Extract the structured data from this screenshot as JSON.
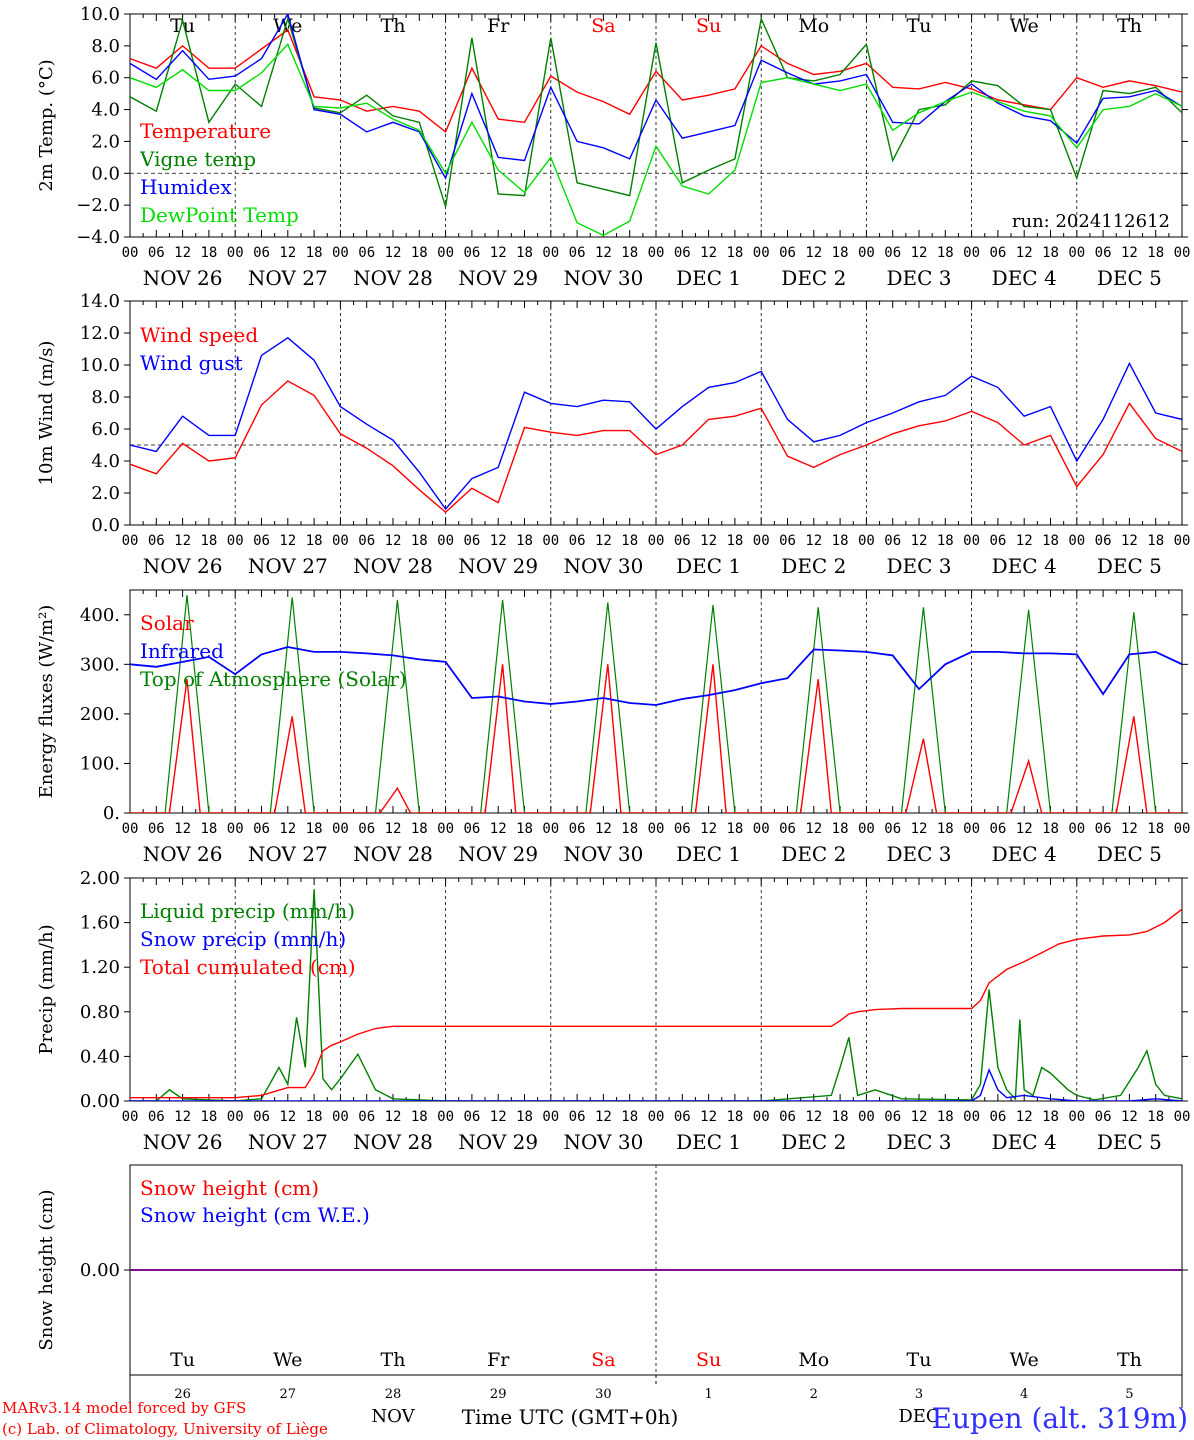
{
  "chart_data": [
    {
      "type": "line",
      "panel": "temperature",
      "ylabel": "2m Temp. (°C)",
      "ylim": [
        -4.0,
        10.0
      ],
      "yticks": [
        "10.0",
        "8.0",
        "6.0",
        "4.0",
        "2.0",
        "0.0",
        "−2.0",
        "−4.0"
      ],
      "yticks_values": [
        10,
        8,
        6,
        4,
        2,
        0,
        -2,
        -4
      ],
      "hline": 0.0,
      "weekday_labels": [
        "Tu",
        "We",
        "Th",
        "Fr",
        "Sa",
        "Su",
        "Mo",
        "Tu",
        "We",
        "Th"
      ],
      "weekday_colors": [
        "#000000",
        "#000000",
        "#000000",
        "#000000",
        "#ff0000",
        "#ff0000",
        "#000000",
        "#000000",
        "#000000",
        "#000000"
      ],
      "annotation": "run: 2024112612",
      "legend": [
        "Temperature",
        "Vigne temp",
        "Humidex",
        "DewPoint Temp"
      ],
      "legend_placement": "left",
      "series": [
        {
          "name": "Temperature",
          "color": "#ff0000",
          "x": [
            0,
            6,
            12,
            18,
            24,
            30,
            36,
            42,
            48,
            54,
            60,
            66,
            72,
            78,
            84,
            90,
            96,
            102,
            108,
            114,
            120,
            126,
            132,
            138,
            144,
            150,
            156,
            162,
            168,
            174,
            180,
            186,
            192,
            198,
            204,
            210,
            216,
            222,
            228,
            234,
            240
          ],
          "values": [
            7.2,
            6.6,
            8.0,
            6.6,
            6.6,
            7.8,
            9.0,
            4.8,
            4.6,
            3.9,
            4.2,
            3.9,
            2.6,
            6.6,
            3.4,
            3.2,
            6.1,
            5.1,
            4.5,
            3.7,
            6.4,
            4.6,
            4.9,
            5.3,
            8.0,
            6.9,
            6.2,
            6.4,
            6.9,
            5.4,
            5.3,
            5.7,
            5.3,
            4.6,
            4.3,
            4.0,
            6.0,
            5.4,
            5.8,
            5.5,
            5.1
          ]
        },
        {
          "name": "Vigne temp",
          "color": "#008000",
          "x": [
            0,
            6,
            12,
            18,
            24,
            30,
            36,
            42,
            48,
            54,
            60,
            66,
            72,
            78,
            84,
            90,
            96,
            102,
            108,
            114,
            120,
            126,
            132,
            138,
            144,
            150,
            156,
            162,
            168,
            174,
            180,
            186,
            192,
            198,
            204,
            210,
            216,
            222,
            228,
            234,
            240
          ],
          "values": [
            4.8,
            3.9,
            9.6,
            3.2,
            5.6,
            4.2,
            9.7,
            4.1,
            3.8,
            4.9,
            3.6,
            3.2,
            -2.1,
            8.5,
            -1.3,
            -1.4,
            8.5,
            -0.6,
            -1.0,
            -1.4,
            8.2,
            -0.6,
            0.2,
            0.9,
            9.7,
            6.0,
            5.8,
            6.2,
            8.1,
            0.8,
            4.0,
            4.3,
            5.8,
            5.5,
            4.2,
            4.0,
            -0.3,
            5.2,
            5.0,
            5.4,
            3.8
          ]
        },
        {
          "name": "Humidex",
          "color": "#0000ff",
          "x": [
            0,
            6,
            12,
            18,
            24,
            30,
            36,
            42,
            48,
            54,
            60,
            66,
            72,
            78,
            84,
            90,
            96,
            102,
            108,
            114,
            120,
            126,
            132,
            138,
            144,
            150,
            156,
            162,
            168,
            174,
            180,
            186,
            192,
            198,
            204,
            210,
            216,
            222,
            228,
            234,
            240
          ],
          "values": [
            6.9,
            5.9,
            7.7,
            5.9,
            6.1,
            7.2,
            10.0,
            4.0,
            3.7,
            2.6,
            3.2,
            2.6,
            -0.3,
            5.0,
            1.0,
            0.8,
            5.4,
            2.0,
            1.6,
            0.9,
            4.6,
            2.2,
            2.6,
            3.0,
            7.1,
            6.3,
            5.6,
            5.8,
            6.2,
            3.2,
            3.1,
            4.5,
            5.6,
            4.4,
            3.6,
            3.3,
            1.9,
            4.7,
            4.8,
            5.2,
            4.2
          ]
        },
        {
          "name": "DewPoint Temp",
          "color": "#00dd00",
          "x": [
            0,
            6,
            12,
            18,
            24,
            30,
            36,
            42,
            48,
            54,
            60,
            66,
            72,
            78,
            84,
            90,
            96,
            102,
            108,
            114,
            120,
            126,
            132,
            138,
            144,
            150,
            156,
            162,
            168,
            174,
            180,
            186,
            192,
            198,
            204,
            210,
            216,
            222,
            228,
            234,
            240
          ],
          "values": [
            6.0,
            5.4,
            6.5,
            5.2,
            5.2,
            6.3,
            8.1,
            4.2,
            4.1,
            4.4,
            3.4,
            2.7,
            0.0,
            3.2,
            0.2,
            -1.2,
            1.0,
            -3.1,
            -3.9,
            -3.0,
            1.7,
            -0.8,
            -1.3,
            0.2,
            5.7,
            6.0,
            5.6,
            5.2,
            5.6,
            2.7,
            3.8,
            4.5,
            5.1,
            4.5,
            3.9,
            3.6,
            1.6,
            4.0,
            4.2,
            5.0,
            4.2
          ]
        }
      ]
    },
    {
      "type": "line",
      "panel": "wind",
      "ylabel": "10m Wind (m/s)",
      "ylim": [
        0.0,
        14.0
      ],
      "yticks": [
        "14.0",
        "12.0",
        "10.0",
        "8.0",
        "6.0",
        "4.0",
        "2.0",
        "0.0"
      ],
      "yticks_values": [
        14,
        12,
        10,
        8,
        6,
        4,
        2,
        0
      ],
      "hline": 5.0,
      "legend": [
        "Wind speed",
        "Wind gust"
      ],
      "legend_placement": "left",
      "series": [
        {
          "name": "Wind speed",
          "color": "#ff0000",
          "x": [
            0,
            6,
            12,
            18,
            24,
            30,
            36,
            42,
            48,
            54,
            60,
            66,
            72,
            78,
            84,
            90,
            96,
            102,
            108,
            114,
            120,
            126,
            132,
            138,
            144,
            150,
            156,
            162,
            168,
            174,
            180,
            186,
            192,
            198,
            204,
            210,
            216,
            222,
            228,
            234,
            240
          ],
          "values": [
            3.8,
            3.2,
            5.1,
            4.0,
            4.2,
            7.5,
            9.0,
            8.1,
            5.7,
            4.8,
            3.7,
            2.2,
            0.8,
            2.3,
            1.4,
            6.1,
            5.8,
            5.6,
            5.9,
            5.9,
            4.4,
            5.0,
            6.6,
            6.8,
            7.3,
            4.3,
            3.6,
            4.4,
            5.0,
            5.7,
            6.2,
            6.5,
            7.1,
            6.4,
            5.0,
            5.6,
            2.4,
            4.4,
            7.6,
            5.4,
            4.6
          ]
        },
        {
          "name": "Wind gust",
          "color": "#0000ff",
          "x": [
            0,
            6,
            12,
            18,
            24,
            30,
            36,
            42,
            48,
            54,
            60,
            66,
            72,
            78,
            84,
            90,
            96,
            102,
            108,
            114,
            120,
            126,
            132,
            138,
            144,
            150,
            156,
            162,
            168,
            174,
            180,
            186,
            192,
            198,
            204,
            210,
            216,
            222,
            228,
            234,
            240
          ],
          "values": [
            5.0,
            4.6,
            6.8,
            5.6,
            5.6,
            10.6,
            11.7,
            10.3,
            7.4,
            6.3,
            5.3,
            3.3,
            1.0,
            2.9,
            3.6,
            8.3,
            7.6,
            7.4,
            7.8,
            7.7,
            6.0,
            7.4,
            8.6,
            8.9,
            9.6,
            6.6,
            5.2,
            5.6,
            6.4,
            7.0,
            7.7,
            8.1,
            9.3,
            8.6,
            6.8,
            7.4,
            4.0,
            6.6,
            10.1,
            7.0,
            6.6
          ]
        }
      ]
    },
    {
      "type": "line",
      "panel": "energy",
      "ylabel": "Energy fluxes (W/m²)",
      "ylim": [
        0,
        450
      ],
      "yticks": [
        "400.",
        "300.",
        "200.",
        "100.",
        "0."
      ],
      "yticks_values": [
        400,
        300,
        200,
        100,
        0
      ],
      "legend": [
        "Solar",
        "Infrared",
        "Top of Atmosphere (Solar)"
      ],
      "legend_placement": "left",
      "toa_peaks": [
        440,
        435,
        430,
        430,
        425,
        420,
        415,
        415,
        410,
        405
      ],
      "solar_peaks": [
        270,
        195,
        50,
        300,
        300,
        300,
        270,
        150,
        105,
        195
      ],
      "series": [
        {
          "name": "Infrared",
          "color": "#0000ff",
          "x": [
            0,
            6,
            12,
            18,
            24,
            30,
            36,
            42,
            48,
            54,
            60,
            66,
            72,
            78,
            84,
            90,
            96,
            102,
            108,
            114,
            120,
            126,
            132,
            138,
            144,
            150,
            156,
            162,
            168,
            174,
            180,
            186,
            192,
            198,
            204,
            210,
            216,
            222,
            228,
            234,
            240
          ],
          "values": [
            300,
            295,
            305,
            315,
            280,
            320,
            335,
            325,
            325,
            322,
            318,
            310,
            305,
            232,
            235,
            225,
            220,
            225,
            232,
            222,
            218,
            230,
            238,
            248,
            262,
            272,
            330,
            328,
            325,
            318,
            250,
            300,
            325,
            325,
            322,
            322,
            320,
            240,
            320,
            325,
            300
          ]
        }
      ]
    },
    {
      "type": "line",
      "panel": "precip",
      "ylabel": "Precip (mm/h)",
      "ylim": [
        0.0,
        2.0
      ],
      "yticks": [
        "2.00",
        "1.60",
        "1.20",
        "0.80",
        "0.40",
        "0.00"
      ],
      "yticks_values": [
        2.0,
        1.6,
        1.2,
        0.8,
        0.4,
        0.0
      ],
      "legend": [
        "Liquid precip (mm/h)",
        "Snow precip (mm/h)",
        "Total cumulated (cm)"
      ],
      "legend_placement": "left",
      "series": [
        {
          "name": "Liquid precip (mm/h)",
          "color": "#008000",
          "x": [
            0,
            6,
            9,
            12,
            18,
            24,
            30,
            34,
            36,
            38,
            40,
            42,
            44,
            46,
            48,
            52,
            56,
            60,
            72,
            96,
            120,
            144,
            160,
            162,
            164,
            166,
            170,
            176,
            192,
            194,
            196,
            198,
            200,
            202,
            203,
            204,
            206,
            208,
            210,
            214,
            216,
            220,
            226,
            230,
            232,
            234,
            236,
            240
          ],
          "values": [
            0,
            0.0,
            0.1,
            0.02,
            0.01,
            0.0,
            0.02,
            0.3,
            0.15,
            0.75,
            0.3,
            1.9,
            0.2,
            0.1,
            0.2,
            0.42,
            0.1,
            0.02,
            0,
            0,
            0,
            0,
            0.05,
            0.3,
            0.57,
            0.05,
            0.1,
            0.02,
            0.01,
            0.15,
            1.0,
            0.3,
            0.1,
            0.02,
            0.73,
            0.1,
            0.05,
            0.3,
            0.25,
            0.1,
            0.05,
            0.01,
            0.05,
            0.3,
            0.45,
            0.15,
            0.05,
            0.02
          ]
        },
        {
          "name": "Snow precip (mm/h)",
          "color": "#0000ff",
          "x": [
            0,
            192,
            194,
            196,
            198,
            200,
            204,
            210,
            216,
            222,
            228,
            234,
            240
          ],
          "values": [
            0,
            0,
            0.05,
            0.28,
            0.1,
            0.03,
            0.05,
            0.02,
            0.0,
            0.0,
            0.0,
            0.02,
            0.0
          ]
        },
        {
          "name": "Total cumulated (cm)",
          "color": "#ff0000",
          "x": [
            0,
            24,
            30,
            36,
            40,
            42,
            44,
            46,
            48,
            52,
            56,
            60,
            72,
            96,
            120,
            144,
            156,
            160,
            162,
            164,
            166,
            170,
            176,
            192,
            194,
            196,
            198,
            200,
            204,
            208,
            212,
            216,
            222,
            228,
            232,
            236,
            240
          ],
          "values": [
            0.03,
            0.03,
            0.05,
            0.12,
            0.12,
            0.25,
            0.45,
            0.5,
            0.53,
            0.6,
            0.65,
            0.67,
            0.67,
            0.67,
            0.67,
            0.67,
            0.67,
            0.67,
            0.72,
            0.78,
            0.8,
            0.82,
            0.83,
            0.83,
            0.9,
            1.06,
            1.12,
            1.18,
            1.25,
            1.33,
            1.41,
            1.45,
            1.48,
            1.49,
            1.52,
            1.6,
            1.72
          ]
        }
      ]
    },
    {
      "type": "line",
      "panel": "snow",
      "ylabel": "Snow height (cm)",
      "yticks": [
        "0.00"
      ],
      "legend": [
        "Snow height (cm)",
        "Snow height (cm W.E.)"
      ],
      "legend_placement": "left",
      "series": [
        {
          "name": "Snow height (cm)",
          "color": "#ff0000",
          "x": [
            0,
            240
          ],
          "values": [
            0,
            0
          ]
        },
        {
          "name": "Snow height (cm W.E.)",
          "color": "#0000ff",
          "x": [
            0,
            240
          ],
          "values": [
            0,
            0
          ]
        }
      ]
    }
  ],
  "hour_ticks": [
    "00",
    "06",
    "12",
    "18"
  ],
  "hour_tick_last": "00",
  "date_labels": [
    "NOV 26",
    "NOV 27",
    "NOV 28",
    "NOV 29",
    "NOV 30",
    "DEC 1",
    "DEC 2",
    "DEC 3",
    "DEC 4",
    "DEC 5"
  ],
  "bottom_weekdays": [
    "Tu",
    "We",
    "Th",
    "Fr",
    "Sa",
    "Su",
    "Mo",
    "Tu",
    "We",
    "Th"
  ],
  "bottom_weekday_colors": [
    "#000000",
    "#000000",
    "#000000",
    "#000000",
    "#ff0000",
    "#ff0000",
    "#000000",
    "#000000",
    "#000000",
    "#000000"
  ],
  "bottom_day_numbers": [
    "26",
    "27",
    "28",
    "29",
    "30",
    "1",
    "2",
    "3",
    "4",
    "5"
  ],
  "month_labels": [
    "NOV",
    "DEC"
  ],
  "xlabel": "Time UTC (GMT+0h)",
  "footer": {
    "credit_1": "MARv3.14 model forced by GFS",
    "credit_2": "(c) Lab. of Climatology, University of Liège",
    "station": "Eupen (alt. 319m)"
  }
}
